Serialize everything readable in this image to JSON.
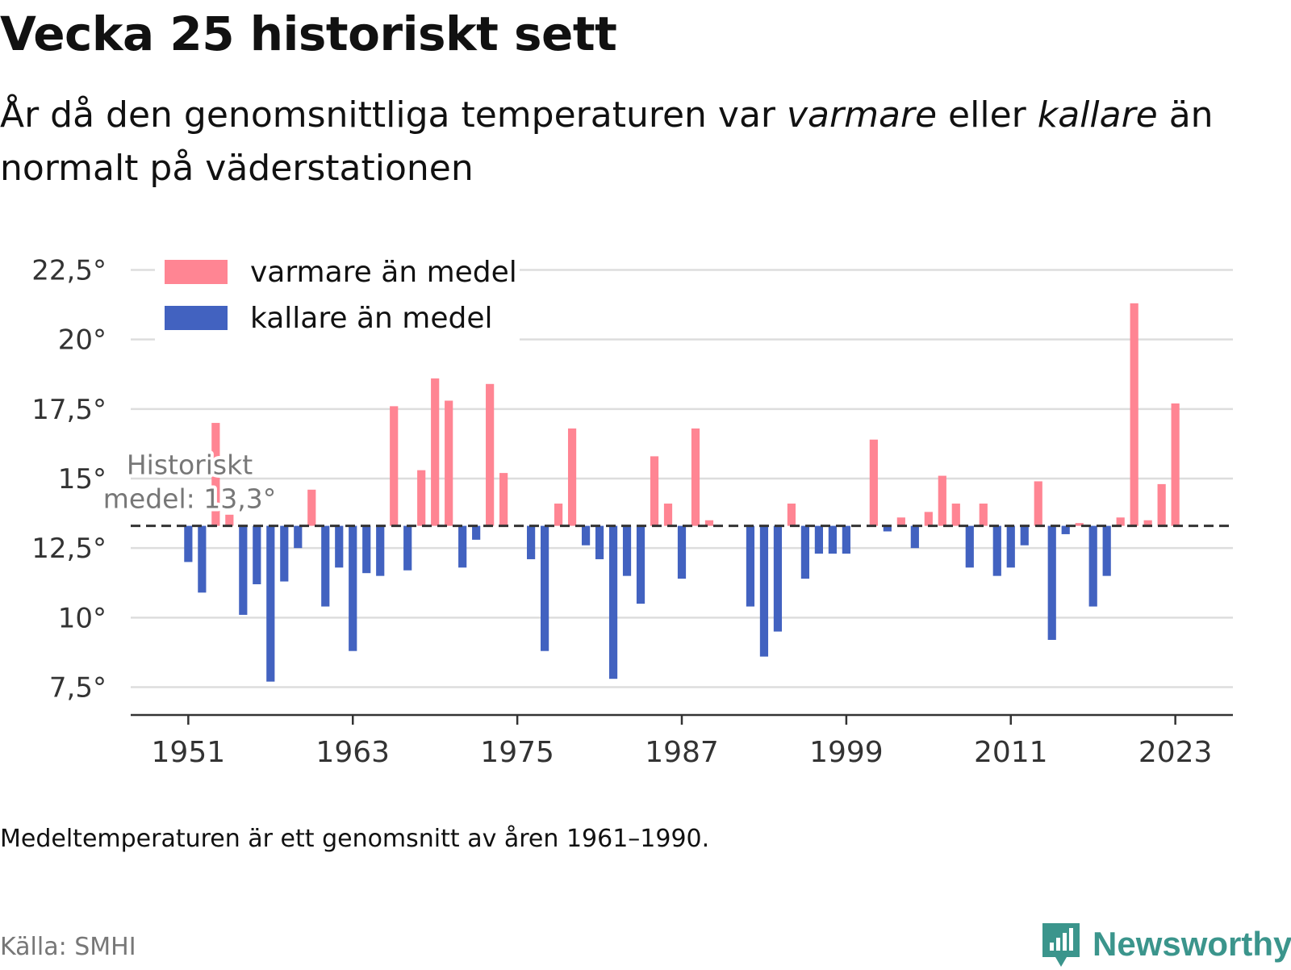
{
  "header": {
    "title": "Vecka 25 historiskt sett",
    "subtitle_pre": "År då den genomsnittliga temperaturen var ",
    "subtitle_warm": "varmare",
    "subtitle_mid": " eller ",
    "subtitle_cold": "kallare",
    "subtitle_post": " än normalt på väderstationen"
  },
  "footer": {
    "note": "Medeltemperaturen är ett genomsnitt av åren 1961–1990.",
    "source": "Källa: SMHI",
    "brand": "Newsworthy"
  },
  "colors": {
    "warm": "#ff8593",
    "cold": "#4262c0",
    "grid": "#dddddd",
    "axis": "#333333",
    "mean_line": "#333333",
    "mean_label": "#777777",
    "brand": "#3b958c"
  },
  "chart_data": {
    "type": "bar",
    "title": "Vecka 25 historiskt sett",
    "baseline": 13.3,
    "baseline_label_line1": "Historiskt",
    "baseline_label_line2": "medel: 13,3°",
    "ylim": [
      6.5,
      23.5
    ],
    "yticks": [
      7.5,
      10,
      12.5,
      15,
      17.5,
      20,
      22.5
    ],
    "ytick_labels": [
      "7,5°",
      "10°",
      "12,5°",
      "15°",
      "17,5°",
      "20°",
      "22,5°"
    ],
    "xlim": [
      1946.8,
      2027.2
    ],
    "xticks": [
      1951,
      1963,
      1975,
      1987,
      1999,
      2011,
      2023
    ],
    "xtick_labels": [
      "1951",
      "1963",
      "1975",
      "1987",
      "1999",
      "2011",
      "2023"
    ],
    "legend": {
      "position": "top-left",
      "entries": [
        {
          "label": "varmare än medel",
          "color": "#ff8593"
        },
        {
          "label": "kallare än medel",
          "color": "#4262c0"
        }
      ]
    },
    "grid": true,
    "x": [
      1951,
      1952,
      1953,
      1954,
      1955,
      1956,
      1957,
      1958,
      1959,
      1960,
      1961,
      1962,
      1963,
      1964,
      1965,
      1966,
      1967,
      1968,
      1969,
      1970,
      1971,
      1972,
      1973,
      1974,
      1975,
      1976,
      1977,
      1978,
      1979,
      1980,
      1981,
      1982,
      1983,
      1984,
      1985,
      1986,
      1987,
      1988,
      1989,
      1990,
      1991,
      1992,
      1993,
      1994,
      1995,
      1996,
      1997,
      1998,
      1999,
      2000,
      2001,
      2002,
      2003,
      2004,
      2005,
      2006,
      2007,
      2008,
      2009,
      2010,
      2011,
      2012,
      2013,
      2014,
      2015,
      2016,
      2017,
      2018,
      2019,
      2020,
      2021,
      2022,
      2023
    ],
    "values": [
      12.0,
      10.9,
      17.0,
      13.7,
      10.1,
      11.2,
      7.7,
      11.3,
      12.5,
      14.6,
      10.4,
      11.8,
      8.8,
      11.6,
      11.5,
      17.6,
      11.7,
      15.3,
      18.6,
      17.8,
      11.8,
      12.8,
      18.4,
      15.2,
      13.3,
      12.1,
      8.8,
      14.1,
      16.8,
      12.6,
      12.1,
      7.8,
      11.5,
      10.5,
      15.8,
      14.1,
      11.4,
      16.8,
      13.5,
      13.3,
      13.3,
      10.4,
      8.6,
      9.5,
      14.1,
      11.4,
      12.3,
      12.3,
      12.3,
      13.3,
      16.4,
      13.1,
      13.6,
      12.5,
      13.8,
      15.1,
      14.1,
      11.8,
      14.1,
      11.5,
      11.8,
      12.6,
      14.9,
      9.2,
      13.0,
      13.4,
      10.4,
      11.5,
      13.6,
      21.3,
      13.5,
      14.8,
      17.7
    ]
  }
}
